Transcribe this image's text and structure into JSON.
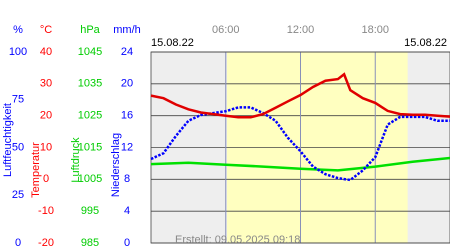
{
  "chart_data": {
    "type": "line",
    "date_left": "15.08.22",
    "date_right": "15.08.22",
    "footer": "Erstellt: 09.05.2025 09:18",
    "xlim": [
      0,
      24
    ],
    "xticks": [
      {
        "value": 6,
        "label": "06:00"
      },
      {
        "value": 12,
        "label": "12:00"
      },
      {
        "value": 18,
        "label": "18:00"
      }
    ],
    "daylight": [
      6.1,
      20.6
    ],
    "axes": [
      {
        "unit": "%",
        "label": "Luftfeuchtigkeit",
        "color": "#0000ff",
        "ylim": [
          0,
          100
        ],
        "yticks": [
          0,
          25,
          50,
          75,
          100
        ]
      },
      {
        "unit": "°C",
        "label": "Temperatur",
        "color": "#ff0000",
        "ylim": [
          -20,
          40
        ],
        "yticks": [
          -20,
          -10,
          0,
          10,
          20,
          30,
          40
        ]
      },
      {
        "unit": "hPa",
        "label": "Luftdruck",
        "color": "#00cc00",
        "ylim": [
          985,
          1045
        ],
        "yticks": [
          985,
          995,
          1005,
          1015,
          1025,
          1035,
          1045
        ]
      },
      {
        "unit": "mm/h",
        "label": "Niederschlag",
        "color": "#0000ff",
        "ylim": [
          0,
          24
        ],
        "yticks": [
          0,
          4,
          8,
          12,
          16,
          20,
          24
        ]
      }
    ],
    "series": [
      {
        "axis": 2,
        "color": "#00e000",
        "x": [
          0,
          3,
          6,
          9,
          12,
          15,
          18,
          21,
          24
        ],
        "values": [
          1009.8,
          1010.2,
          1009.6,
          1009,
          1008.3,
          1007.8,
          1009,
          1010.5,
          1011.7
        ]
      },
      {
        "axis": 0,
        "color": "#0000ff",
        "x": [
          0,
          1,
          2,
          3,
          4,
          5,
          6,
          7,
          8,
          9,
          10,
          11,
          12,
          13,
          14,
          15,
          16,
          17,
          18,
          19,
          20,
          21,
          22,
          23,
          24
        ],
        "values": [
          44,
          47,
          56,
          64,
          67,
          68,
          69,
          71,
          71,
          68,
          64,
          55,
          48,
          40,
          36,
          34,
          33,
          38,
          45,
          62,
          66,
          66,
          66,
          64,
          64
        ]
      },
      {
        "axis": 1,
        "color": "#e00000",
        "x": [
          0,
          1,
          2,
          3,
          4,
          5,
          6,
          7,
          8,
          9,
          10,
          11,
          12,
          13,
          14,
          15,
          15.5,
          16,
          17,
          18,
          19,
          20,
          21,
          22,
          23,
          24
        ],
        "values": [
          26.3,
          25.5,
          23.5,
          22,
          21,
          20.5,
          20,
          19.5,
          19.5,
          20.5,
          22.5,
          24.5,
          26.5,
          29,
          31,
          31.5,
          33,
          28,
          25.5,
          24,
          21.5,
          20.5,
          20.3,
          20.3,
          20,
          19.7
        ]
      }
    ]
  }
}
